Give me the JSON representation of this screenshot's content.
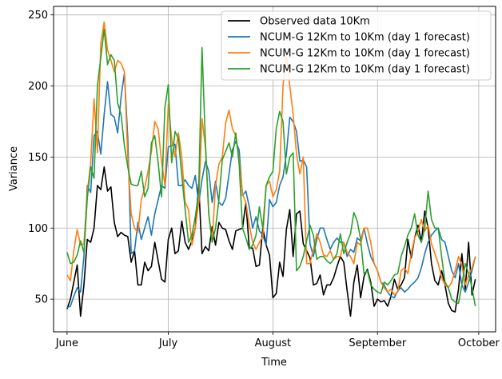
{
  "chart_data": {
    "type": "line",
    "title": "",
    "xlabel": "Time",
    "ylabel": "Variance",
    "x_dates": [
      "2023-06-01",
      "2023-06-02",
      "2023-06-03",
      "2023-06-04",
      "2023-06-05",
      "2023-06-06",
      "2023-06-07",
      "2023-06-08",
      "2023-06-09",
      "2023-06-10",
      "2023-06-11",
      "2023-06-12",
      "2023-06-13",
      "2023-06-14",
      "2023-06-15",
      "2023-06-16",
      "2023-06-17",
      "2023-06-18",
      "2023-06-19",
      "2023-06-20",
      "2023-06-21",
      "2023-06-22",
      "2023-06-23",
      "2023-06-24",
      "2023-06-25",
      "2023-06-26",
      "2023-06-27",
      "2023-06-28",
      "2023-06-29",
      "2023-06-30",
      "2023-07-01",
      "2023-07-02",
      "2023-07-03",
      "2023-07-04",
      "2023-07-05",
      "2023-07-06",
      "2023-07-07",
      "2023-07-08",
      "2023-07-09",
      "2023-07-10",
      "2023-07-11",
      "2023-07-12",
      "2023-07-13",
      "2023-07-14",
      "2023-07-15",
      "2023-07-16",
      "2023-07-17",
      "2023-07-18",
      "2023-07-19",
      "2023-07-20",
      "2023-07-21",
      "2023-07-22",
      "2023-07-23",
      "2023-07-24",
      "2023-07-25",
      "2023-07-26",
      "2023-07-27",
      "2023-07-28",
      "2023-07-29",
      "2023-07-30",
      "2023-07-31",
      "2023-08-01",
      "2023-08-02",
      "2023-08-03",
      "2023-08-04",
      "2023-08-05",
      "2023-08-06",
      "2023-08-07",
      "2023-08-08",
      "2023-08-09",
      "2023-08-10",
      "2023-08-11",
      "2023-08-12",
      "2023-08-13",
      "2023-08-14",
      "2023-08-15",
      "2023-08-16",
      "2023-08-17",
      "2023-08-18",
      "2023-08-19",
      "2023-08-20",
      "2023-08-21",
      "2023-08-22",
      "2023-08-23",
      "2023-08-24",
      "2023-08-25",
      "2023-08-26",
      "2023-08-27",
      "2023-08-28",
      "2023-08-29",
      "2023-08-30",
      "2023-08-31",
      "2023-09-01",
      "2023-09-02",
      "2023-09-03",
      "2023-09-04",
      "2023-09-05",
      "2023-09-06",
      "2023-09-07",
      "2023-09-08",
      "2023-09-09",
      "2023-09-10",
      "2023-09-11",
      "2023-09-12",
      "2023-09-13",
      "2023-09-14",
      "2023-09-15",
      "2023-09-16",
      "2023-09-17",
      "2023-09-18",
      "2023-09-19",
      "2023-09-20",
      "2023-09-21",
      "2023-09-22",
      "2023-09-23",
      "2023-09-24",
      "2023-09-25",
      "2023-09-26",
      "2023-09-27",
      "2023-09-28",
      "2023-09-29",
      "2023-09-30",
      "2023-10-01",
      "2023-10-02"
    ],
    "xticks": [
      {
        "date": "2023-06-01",
        "label": "June"
      },
      {
        "date": "2023-07-01",
        "label": "July"
      },
      {
        "date": "2023-08-01",
        "label": "August"
      },
      {
        "date": "2023-09-01",
        "label": "September"
      },
      {
        "date": "2023-10-01",
        "label": "October"
      }
    ],
    "xlim": [
      "2023-05-28",
      "2023-10-06"
    ],
    "ylim": [
      27,
      256
    ],
    "yticks": [
      50,
      100,
      150,
      200,
      250
    ],
    "grid": true,
    "legend_position": "upper-right",
    "series": [
      {
        "name": "Observed data 10Km",
        "color": "#000000",
        "values": [
          43,
          50,
          62,
          74,
          38,
          60,
          92,
          90,
          100,
          130,
          127,
          143,
          126,
          129,
          104,
          94,
          97,
          95,
          94,
          76,
          84,
          60,
          60,
          76,
          70,
          73,
          90,
          77,
          64,
          62,
          92,
          100,
          82,
          84,
          105,
          90,
          85,
          91,
          100,
          131,
          82,
          87,
          84,
          101,
          88,
          104,
          100,
          99,
          91,
          85,
          98,
          99,
          100,
          118,
          86,
          86,
          73,
          74,
          100,
          88,
          81,
          51,
          54,
          76,
          66,
          99,
          113,
          80,
          110,
          112,
          89,
          84,
          79,
          60,
          61,
          67,
          53,
          60,
          60,
          65,
          73,
          80,
          76,
          56,
          38,
          62,
          74,
          51,
          66,
          71,
          62,
          45,
          50,
          48,
          49,
          45,
          52,
          64,
          57,
          60,
          65,
          92,
          79,
          93,
          102,
          90,
          112,
          100,
          75,
          63,
          60,
          70,
          60,
          47,
          42,
          41,
          57,
          82,
          57,
          90,
          53,
          64
        ]
      },
      {
        "name": "NCUM-G 12Km to 10Km (day 1 forecast)",
        "color": "#1f77b4",
        "values": [
          44,
          45,
          52,
          58,
          55,
          80,
          130,
          125,
          165,
          168,
          152,
          180,
          203,
          180,
          178,
          167,
          192,
          209,
          163,
          82,
          84,
          104,
          92,
          100,
          108,
          95,
          110,
          120,
          130,
          128,
          157,
          158,
          159,
          130,
          130,
          134,
          130,
          128,
          137,
          117,
          134,
          147,
          140,
          118,
          133,
          118,
          116,
          121,
          138,
          155,
          161,
          155,
          123,
          126,
          115,
          100,
          108,
          98,
          95,
          88,
          120,
          115,
          118,
          130,
          136,
          152,
          178,
          175,
          168,
          147,
          148,
          143,
          89,
          80,
          92,
          100,
          100,
          92,
          85,
          90,
          93,
          90,
          90,
          80,
          85,
          83,
          93,
          91,
          100,
          89,
          80,
          75,
          70,
          62,
          60,
          55,
          52,
          51,
          56,
          58,
          55,
          57,
          60,
          62,
          65,
          72,
          82,
          90,
          95,
          98,
          100,
          92,
          90,
          80,
          70,
          65,
          75,
          60,
          55,
          62,
          70,
          80
        ]
      },
      {
        "name": "NCUM-G 12Km to 10Km (day 1 forecast)",
        "color": "#ff7f0e",
        "values": [
          67,
          63,
          84,
          99,
          88,
          89,
          125,
          146,
          191,
          153,
          230,
          245,
          225,
          218,
          210,
          218,
          216,
          210,
          150,
          110,
          100,
          97,
          120,
          128,
          140,
          154,
          175,
          170,
          147,
          130,
          187,
          163,
          150,
          167,
          150,
          118,
          113,
          88,
          100,
          118,
          177,
          157,
          110,
          90,
          130,
          145,
          150,
          174,
          183,
          170,
          165,
          148,
          124,
          118,
          102,
          90,
          85,
          90,
          94,
          130,
          133,
          122,
          127,
          140,
          200,
          222,
          200,
          180,
          152,
          138,
          150,
          75,
          75,
          85,
          96,
          90,
          81,
          80,
          84,
          78,
          80,
          80,
          90,
          83,
          80,
          75,
          90,
          88,
          100,
          100,
          90,
          75,
          70,
          62,
          58,
          55,
          57,
          53,
          55,
          70,
          72,
          68,
          82,
          93,
          98,
          106,
          98,
          102,
          89,
          82,
          75,
          65,
          60,
          58,
          62,
          70,
          80,
          74,
          60,
          67,
          72,
          80
        ]
      },
      {
        "name": "NCUM-G 12Km to 10Km (day 1 forecast)",
        "color": "#2ca02c",
        "values": [
          83,
          75,
          76,
          81,
          91,
          83,
          121,
          143,
          135,
          200,
          220,
          240,
          215,
          222,
          218,
          188,
          180,
          158,
          143,
          131,
          130,
          130,
          140,
          122,
          128,
          160,
          165,
          146,
          122,
          185,
          201,
          146,
          168,
          163,
          137,
          113,
          90,
          95,
          108,
          125,
          227,
          160,
          110,
          90,
          100,
          120,
          148,
          154,
          160,
          150,
          167,
          145,
          100,
          93,
          85,
          88,
          95,
          115,
          100,
          130,
          136,
          140,
          170,
          182,
          175,
          138,
          150,
          153,
          70,
          73,
          80,
          91,
          102,
          95,
          78,
          80,
          80,
          77,
          75,
          78,
          82,
          96,
          82,
          90,
          96,
          111,
          105,
          92,
          68,
          70,
          60,
          57,
          55,
          54,
          62,
          60,
          63,
          67,
          68,
          80,
          87,
          95,
          100,
          110,
          95,
          90,
          100,
          126,
          106,
          100,
          100,
          80,
          62,
          58,
          50,
          48,
          47,
          60,
          75,
          68,
          58,
          45
        ]
      }
    ]
  }
}
